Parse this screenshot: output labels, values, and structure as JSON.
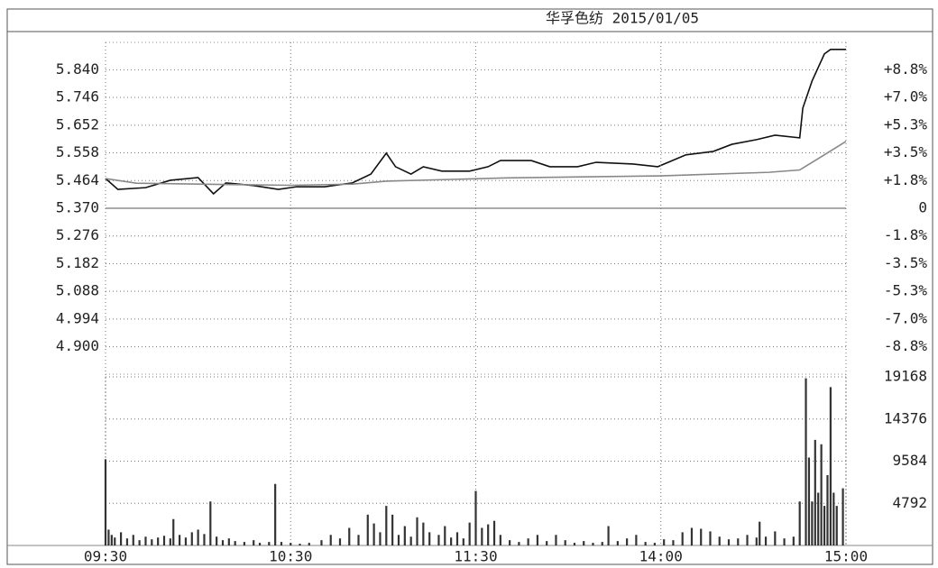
{
  "chart_data": [
    {
      "type": "line",
      "title": "华孚色纺 2015/01/05",
      "xlim": [
        0,
        240
      ],
      "ylim": [
        4.807,
        5.933
      ],
      "yticks": [
        {
          "value": 5.84,
          "label": "5.840"
        },
        5.746,
        5.652,
        5.558,
        5.464,
        {
          "value": 5.37,
          "label": "5.370"
        },
        5.276,
        5.182,
        5.088,
        4.994,
        {
          "value": 4.9,
          "label": "4.900"
        }
      ],
      "y2lim": [
        -10.49,
        10.49
      ],
      "y2ticks": [
        {
          "value": 8.75,
          "label": "+8.8%"
        },
        {
          "value": 7.0,
          "label": "+7.0%"
        },
        {
          "value": 5.25,
          "label": "+5.3%"
        },
        {
          "value": 3.5,
          "label": "+3.5%"
        },
        {
          "value": 1.75,
          "label": "+1.8%"
        },
        0,
        {
          "value": -1.75,
          "label": "-1.8%"
        },
        {
          "value": -3.5,
          "label": "-3.5%"
        },
        {
          "value": -5.25,
          "label": "-5.3%"
        },
        {
          "value": -7.0,
          "label": "-7.0%"
        },
        {
          "value": -8.75,
          "label": "-8.8%"
        }
      ],
      "grid": true,
      "series": [
        {
          "color": "#111111",
          "x": [
            0,
            4,
            13,
            21,
            30,
            35,
            39,
            48,
            56,
            62,
            71,
            80,
            86,
            91,
            94,
            99,
            103,
            109,
            118,
            124,
            128,
            138,
            144,
            153,
            159,
            171,
            179,
            188,
            197,
            203,
            211,
            217,
            225,
            226,
            229,
            233,
            235,
            240
          ],
          "values": [
            5.471,
            5.434,
            5.44,
            5.465,
            5.474,
            5.419,
            5.456,
            5.447,
            5.434,
            5.443,
            5.443,
            5.456,
            5.486,
            5.557,
            5.511,
            5.486,
            5.511,
            5.496,
            5.496,
            5.511,
            5.532,
            5.532,
            5.511,
            5.511,
            5.526,
            5.52,
            5.511,
            5.551,
            5.563,
            5.587,
            5.603,
            5.618,
            5.609,
            5.71,
            5.802,
            5.894,
            5.909,
            5.909
          ]
        },
        {
          "color": "#888888",
          "x": [
            0,
            10,
            30,
            60,
            80,
            91,
            130,
            180,
            215,
            225,
            232,
            240
          ],
          "values": [
            5.471,
            5.455,
            5.452,
            5.448,
            5.452,
            5.462,
            5.473,
            5.48,
            5.492,
            5.5,
            5.545,
            5.597
          ]
        }
      ]
    },
    {
      "type": "bar",
      "xlim": [
        0,
        240
      ],
      "ylim": [
        0,
        19168
      ],
      "xticks": [
        {
          "value": 0,
          "label": "09:30"
        },
        {
          "value": 60,
          "label": "10:30"
        },
        {
          "value": 120,
          "label": "11:30"
        },
        {
          "value": 180,
          "label": "14:00"
        },
        {
          "value": 240,
          "label": "15:00"
        }
      ],
      "yticks": [
        19168,
        14376,
        9584,
        4792
      ],
      "grid": true,
      "color": "#333333",
      "x": [
        0,
        1,
        2,
        3,
        5,
        7,
        9,
        11,
        13,
        15,
        17,
        19,
        21,
        22,
        24,
        26,
        28,
        30,
        32,
        34,
        36,
        38,
        40,
        42,
        45,
        48,
        50,
        53,
        55,
        57,
        60,
        63,
        66,
        70,
        73,
        76,
        79,
        82,
        85,
        87,
        89,
        91,
        93,
        95,
        97,
        99,
        101,
        103,
        105,
        108,
        110,
        112,
        114,
        116,
        118,
        120,
        122,
        124,
        126,
        128,
        131,
        134,
        137,
        140,
        143,
        146,
        149,
        152,
        155,
        158,
        161,
        163,
        166,
        169,
        172,
        175,
        178,
        181,
        184,
        187,
        190,
        193,
        196,
        199,
        202,
        205,
        208,
        211,
        212,
        214,
        217,
        220,
        223,
        225,
        227,
        228,
        229,
        230,
        231,
        232,
        233,
        234,
        235,
        236,
        237,
        239
      ],
      "values": [
        9800,
        1800,
        1200,
        900,
        1500,
        800,
        1200,
        600,
        1000,
        700,
        900,
        1100,
        800,
        3000,
        1200,
        900,
        1500,
        1800,
        1300,
        5000,
        1000,
        600,
        800,
        500,
        400,
        600,
        300,
        400,
        7000,
        400,
        300,
        200,
        300,
        600,
        1200,
        800,
        2000,
        1200,
        3500,
        2500,
        1500,
        4500,
        3500,
        1200,
        2200,
        1000,
        3200,
        2600,
        1500,
        1200,
        2200,
        900,
        1500,
        800,
        2600,
        6200,
        2000,
        2400,
        2800,
        1200,
        600,
        400,
        800,
        1200,
        500,
        1200,
        600,
        300,
        500,
        300,
        400,
        2200,
        500,
        800,
        1200,
        400,
        300,
        700,
        600,
        1500,
        2000,
        1900,
        1600,
        1000,
        700,
        800,
        1200,
        900,
        2700,
        1000,
        1600,
        800,
        1000,
        5000,
        19000,
        10000,
        5000,
        12000,
        6000,
        11500,
        4500,
        8000,
        18000,
        6000,
        4500,
        6500
      ]
    }
  ]
}
